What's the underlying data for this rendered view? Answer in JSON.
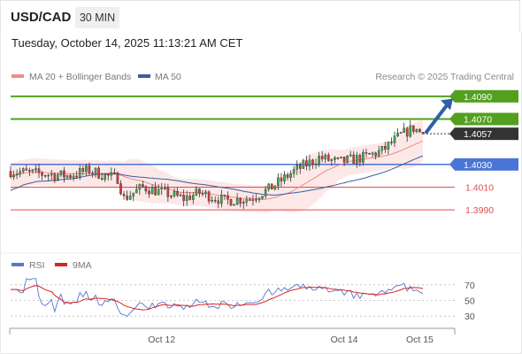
{
  "header": {
    "symbol": "USD/CAD",
    "timeframe": "30 MIN",
    "datetime": "Tuesday, October 14, 2025 11:13:21 AM CET"
  },
  "legend": {
    "items": [
      {
        "label": "MA 20 + Bollinger Bands",
        "color": "#f08a8a"
      },
      {
        "label": "MA 50",
        "color": "#3a5d9c"
      }
    ],
    "credit": "Research © 2025 Trading Central"
  },
  "rsi_legend": {
    "items": [
      {
        "label": "RSI",
        "color": "#5577cc"
      },
      {
        "label": "9MA",
        "color": "#dd2222"
      }
    ]
  },
  "colors": {
    "green": "#52a01e",
    "blue": "#4a74d6",
    "red": "#e34d4d",
    "dark": "#333333",
    "arrow": "#2f5fa8"
  },
  "chart_data": {
    "type": "candlestick",
    "ylim": [
      1.3955,
      1.41
    ],
    "price_levels": [
      {
        "value": 1.409,
        "label": "1.4090",
        "style": "green-box"
      },
      {
        "value": 1.407,
        "label": "1.4070",
        "style": "green-box"
      },
      {
        "value": 1.4057,
        "label": "1.4057",
        "style": "current"
      },
      {
        "value": 1.403,
        "label": "1.4030",
        "style": "blue-box"
      },
      {
        "value": 1.401,
        "label": "1.4010",
        "style": "red-text"
      },
      {
        "value": 1.399,
        "label": "1.3990",
        "style": "red-text"
      }
    ],
    "x_labels": [
      {
        "label": "Oct 12",
        "index": 48
      },
      {
        "label": "Oct 14",
        "index": 106
      },
      {
        "label": "Oct 15",
        "index": 130
      }
    ],
    "n_candles": 132,
    "anchors": [
      [
        0,
        1.4024
      ],
      [
        8,
        1.4022
      ],
      [
        18,
        1.402
      ],
      [
        25,
        1.4025
      ],
      [
        30,
        1.402
      ],
      [
        34,
        1.4018
      ],
      [
        36,
        1.4
      ],
      [
        42,
        1.401
      ],
      [
        50,
        1.4004
      ],
      [
        55,
        1.4
      ],
      [
        60,
        1.4005
      ],
      [
        68,
        1.3998
      ],
      [
        76,
        1.4
      ],
      [
        82,
        1.4008
      ],
      [
        90,
        1.4024
      ],
      [
        98,
        1.4036
      ],
      [
        104,
        1.4032
      ],
      [
        112,
        1.4036
      ],
      [
        118,
        1.4042
      ],
      [
        124,
        1.4056
      ],
      [
        128,
        1.4062
      ],
      [
        131,
        1.4057
      ]
    ],
    "rsi": {
      "ylim": [
        20,
        80
      ],
      "levels": [
        70,
        50,
        30
      ],
      "tick_labels": [
        "70",
        "50",
        "30"
      ]
    }
  }
}
